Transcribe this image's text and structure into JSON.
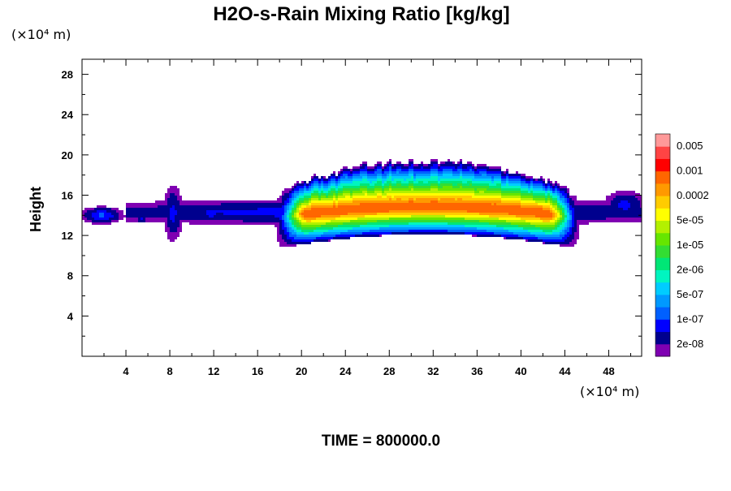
{
  "chart_data": {
    "type": "heatmap",
    "title": "H2O-s-Rain Mixing Ratio [kg/kg]",
    "ylabel": "Height",
    "x_unit_label": "(×10⁴ m)",
    "y_unit_label": "(×10⁴ m)",
    "xlim": [
      0,
      51
    ],
    "ylim": [
      0,
      29.5
    ],
    "x_ticks": [
      4,
      8,
      12,
      16,
      20,
      24,
      28,
      32,
      36,
      40,
      44,
      48
    ],
    "y_ticks": [
      4,
      8,
      12,
      16,
      20,
      24,
      28
    ],
    "colorbar": {
      "colors": [
        "#7f00b2",
        "#00008e",
        "#0000ff",
        "#0060ff",
        "#0099ff",
        "#00ccff",
        "#00f5c0",
        "#00e676",
        "#33dd33",
        "#66e600",
        "#b3f000",
        "#ffff00",
        "#ffcc00",
        "#ff9900",
        "#ff6600",
        "#ff0000",
        "#ff4444",
        "#ff9999"
      ],
      "labels": [
        "2e-08",
        "1e-07",
        "5e-07",
        "2e-06",
        "1e-05",
        "5e-05",
        "0.0002",
        "0.001",
        "0.005"
      ]
    },
    "footer": "TIME = 800000.0"
  }
}
